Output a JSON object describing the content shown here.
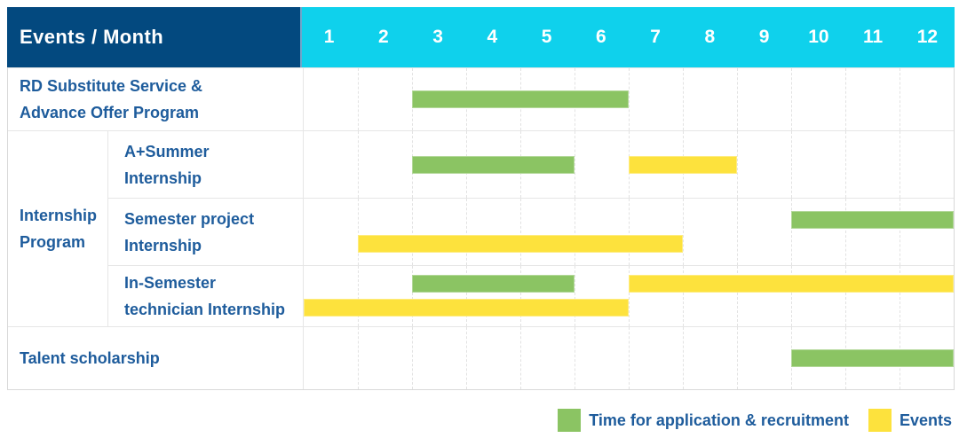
{
  "colors": {
    "header_navy": "#03497F",
    "header_cyan": "#0FD1EC",
    "bar_green": "#8BC463",
    "bar_yellow": "#FDE23D",
    "label_blue": "#1E5C9C"
  },
  "chart_data": {
    "type": "gantt",
    "title": "Events / Month",
    "x_axis": {
      "label": "Month",
      "ticks": [
        "1",
        "2",
        "3",
        "4",
        "5",
        "6",
        "7",
        "8",
        "9",
        "10",
        "11",
        "12"
      ],
      "range": [
        1,
        12
      ]
    },
    "legend": [
      {
        "key": "application",
        "color": "#8BC463",
        "label": "Time for application & recruitment"
      },
      {
        "key": "events",
        "color": "#FDE23D",
        "label": "Events"
      }
    ],
    "rows": [
      {
        "kind": "simple",
        "name": "RD Substitute Service & Advance Offer Program",
        "label_lines": [
          "RD Substitute Service &",
          "Advance Offer Program"
        ],
        "lanes": 1,
        "bars": [
          {
            "series": "application",
            "start_month": 3,
            "end_month": 6,
            "lane": 0
          }
        ]
      },
      {
        "kind": "group",
        "name": "Internship Program",
        "label_lines": [
          "Internship",
          "Program"
        ],
        "subrows": [
          {
            "name": "A+Summer Internship",
            "label_lines": [
              "A+Summer",
              "Internship"
            ],
            "lanes": 1,
            "bars": [
              {
                "series": "application",
                "start_month": 3,
                "end_month": 5,
                "lane": 0
              },
              {
                "series": "events",
                "start_month": 7,
                "end_month": 8,
                "lane": 0
              }
            ]
          },
          {
            "name": "Semester project Internship",
            "label_lines": [
              "Semester project",
              "Internship"
            ],
            "lanes": 2,
            "bars": [
              {
                "series": "application",
                "start_month": 10,
                "end_month": 12,
                "lane": 0
              },
              {
                "series": "events",
                "start_month": 2,
                "end_month": 7,
                "lane": 1
              }
            ]
          },
          {
            "name": "In-Semester technician Internship",
            "label_lines": [
              "In-Semester",
              "technician Internship"
            ],
            "lanes": 2,
            "bars": [
              {
                "series": "application",
                "start_month": 3,
                "end_month": 5,
                "lane": 0
              },
              {
                "series": "events",
                "start_month": 7,
                "end_month": 12,
                "lane": 0
              },
              {
                "series": "events",
                "start_month": 1,
                "end_month": 6,
                "lane": 1
              }
            ]
          }
        ]
      },
      {
        "kind": "simple",
        "name": "Talent scholarship",
        "label_lines": [
          "Talent scholarship"
        ],
        "lanes": 1,
        "bars": [
          {
            "series": "application",
            "start_month": 10,
            "end_month": 12,
            "lane": 0
          }
        ]
      }
    ]
  }
}
